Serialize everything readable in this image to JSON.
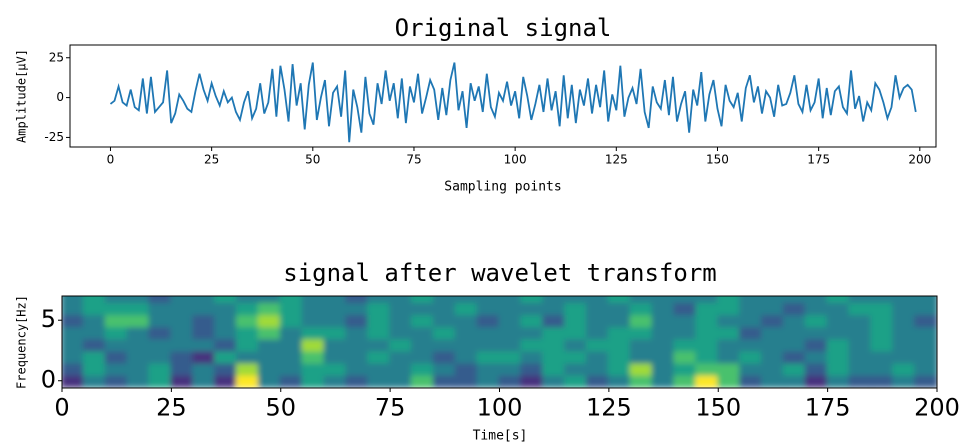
{
  "chart_data": [
    {
      "type": "line",
      "title": "Original signal",
      "xlabel": "Sampling points",
      "ylabel": "Amplitude[μV]",
      "color": "#1f77b4",
      "xlim": [
        -10,
        204
      ],
      "ylim": [
        -31,
        33
      ],
      "xticks": [
        0,
        25,
        50,
        75,
        100,
        125,
        150,
        175,
        200
      ],
      "yticks": [
        -25,
        0,
        25
      ],
      "values": [
        -4,
        -2,
        7,
        -3,
        -5,
        5,
        -6,
        -8,
        12,
        -10,
        13,
        -9,
        -6,
        -3,
        17,
        -16,
        -10,
        2,
        -2,
        -7,
        -9,
        4,
        15,
        5,
        -2,
        9,
        1,
        -5,
        4,
        -3,
        0,
        -9,
        -14,
        -3,
        4,
        -13,
        -7,
        9,
        -10,
        -3,
        18,
        -12,
        20,
        5,
        -15,
        21,
        -5,
        9,
        -20,
        8,
        22,
        -14,
        0,
        11,
        -18,
        3,
        7,
        -12,
        17,
        -28,
        5,
        -6,
        -22,
        13,
        -10,
        -17,
        9,
        -4,
        17,
        -2,
        9,
        -13,
        12,
        -16,
        7,
        -3,
        15,
        -10,
        0,
        11,
        5,
        -14,
        6,
        -11,
        11,
        22,
        -8,
        4,
        -19,
        9,
        -2,
        7,
        -9,
        15,
        -6,
        -12,
        3,
        -2,
        10,
        -5,
        4,
        -13,
        13,
        1,
        -14,
        -4,
        8,
        -9,
        12,
        -8,
        4,
        -18,
        14,
        -13,
        8,
        -16,
        5,
        -5,
        12,
        -10,
        8,
        -6,
        17,
        -15,
        2,
        -8,
        20,
        -12,
        0,
        6,
        -4,
        18,
        -9,
        -19,
        7,
        -3,
        -7,
        11,
        -11,
        13,
        -15,
        -4,
        4,
        -22,
        5,
        -5,
        16,
        -15,
        2,
        11,
        -7,
        -18,
        8,
        -2,
        -6,
        3,
        -15,
        6,
        14,
        -3,
        7,
        -10,
        4,
        0,
        -12,
        8,
        -5,
        -4,
        3,
        14,
        -4,
        -9,
        8,
        -8,
        -3,
        12,
        -13,
        6,
        -11,
        4,
        7,
        -6,
        -10,
        17,
        -7,
        1,
        -15,
        -3,
        -8,
        9,
        5,
        -3,
        -13,
        -6,
        14,
        0,
        6,
        8,
        5,
        -9
      ]
    },
    {
      "type": "contour",
      "title": "signal after wavelet transform",
      "xlabel": "Time[s]",
      "ylabel": "Frequency[Hz]",
      "xlim": [
        0,
        200
      ],
      "ylim": [
        -0.6,
        7
      ],
      "xticks": [
        0,
        25,
        50,
        75,
        100,
        125,
        150,
        175,
        200
      ],
      "yticks": [
        0,
        5
      ],
      "colors": [
        "#440154",
        "#46337e",
        "#365c8d",
        "#277f8e",
        "#1fa187",
        "#4ac16d",
        "#a0da39",
        "#fde725"
      ],
      "x": [
        2.5,
        7.5,
        12.5,
        17.5,
        22.5,
        27.5,
        32.5,
        37.5,
        42.5,
        47.5,
        52.5,
        57.5,
        62.5,
        67.5,
        72.5,
        77.5,
        82.5,
        87.5,
        92.5,
        97.5,
        102.5,
        107.5,
        112.5,
        117.5,
        122.5,
        127.5,
        132.5,
        137.5,
        142.5,
        147.5,
        152.5,
        157.5,
        162.5,
        167.5,
        172.5,
        177.5,
        182.5,
        187.5,
        192.5,
        197.5
      ],
      "y": [
        0,
        1,
        2,
        3,
        4,
        5,
        6,
        7
      ],
      "z": [
        [
          1,
          3,
          2,
          3,
          4,
          1,
          3,
          1,
          7,
          3,
          2,
          4,
          3,
          2,
          3,
          3,
          5,
          2,
          2,
          3,
          2,
          1,
          3,
          4,
          2,
          3,
          5,
          3,
          5,
          7,
          5,
          2,
          3,
          3,
          1,
          3,
          2,
          2,
          3,
          2
        ],
        [
          2,
          4,
          3,
          3,
          4,
          2,
          3,
          2,
          6,
          3,
          3,
          4,
          4,
          3,
          3,
          3,
          4,
          3,
          2,
          3,
          3,
          2,
          4,
          3,
          3,
          4,
          6,
          3,
          4,
          5,
          5,
          3,
          3,
          4,
          2,
          4,
          3,
          3,
          4,
          3
        ],
        [
          3,
          4,
          2,
          3,
          3,
          2,
          1,
          4,
          3,
          3,
          3,
          5,
          3,
          3,
          4,
          3,
          3,
          2,
          3,
          4,
          4,
          3,
          4,
          4,
          3,
          4,
          3,
          3,
          5,
          4,
          3,
          4,
          3,
          2,
          3,
          4,
          3,
          3,
          3,
          3
        ],
        [
          3,
          2,
          3,
          3,
          3,
          3,
          3,
          2,
          4,
          3,
          3,
          6,
          3,
          3,
          3,
          4,
          3,
          3,
          3,
          3,
          3,
          4,
          4,
          3,
          4,
          4,
          3,
          3,
          4,
          4,
          3,
          3,
          3,
          3,
          2,
          4,
          3,
          4,
          3,
          3
        ],
        [
          3,
          3,
          4,
          3,
          2,
          3,
          2,
          3,
          4,
          5,
          3,
          4,
          4,
          3,
          4,
          3,
          3,
          4,
          3,
          3,
          3,
          3,
          4,
          4,
          3,
          4,
          4,
          3,
          3,
          4,
          4,
          2,
          3,
          3,
          3,
          3,
          3,
          4,
          3,
          3
        ],
        [
          2,
          3,
          5,
          5,
          3,
          3,
          2,
          3,
          5,
          6,
          4,
          3,
          3,
          2,
          4,
          3,
          4,
          3,
          3,
          2,
          3,
          4,
          2,
          4,
          3,
          3,
          5,
          3,
          3,
          4,
          3,
          3,
          2,
          3,
          4,
          3,
          3,
          4,
          3,
          2
        ],
        [
          3,
          4,
          4,
          4,
          3,
          3,
          3,
          3,
          4,
          5,
          4,
          3,
          3,
          3,
          4,
          3,
          3,
          3,
          4,
          3,
          3,
          3,
          3,
          4,
          3,
          3,
          4,
          3,
          2,
          4,
          4,
          3,
          3,
          2,
          3,
          3,
          4,
          4,
          3,
          3
        ],
        [
          3,
          4,
          3,
          3,
          2,
          3,
          3,
          4,
          3,
          3,
          4,
          3,
          3,
          2,
          3,
          3,
          4,
          3,
          3,
          3,
          3,
          4,
          3,
          3,
          3,
          4,
          3,
          3,
          3,
          3,
          4,
          3,
          3,
          3,
          3,
          4,
          3,
          3,
          3,
          3
        ]
      ]
    }
  ]
}
